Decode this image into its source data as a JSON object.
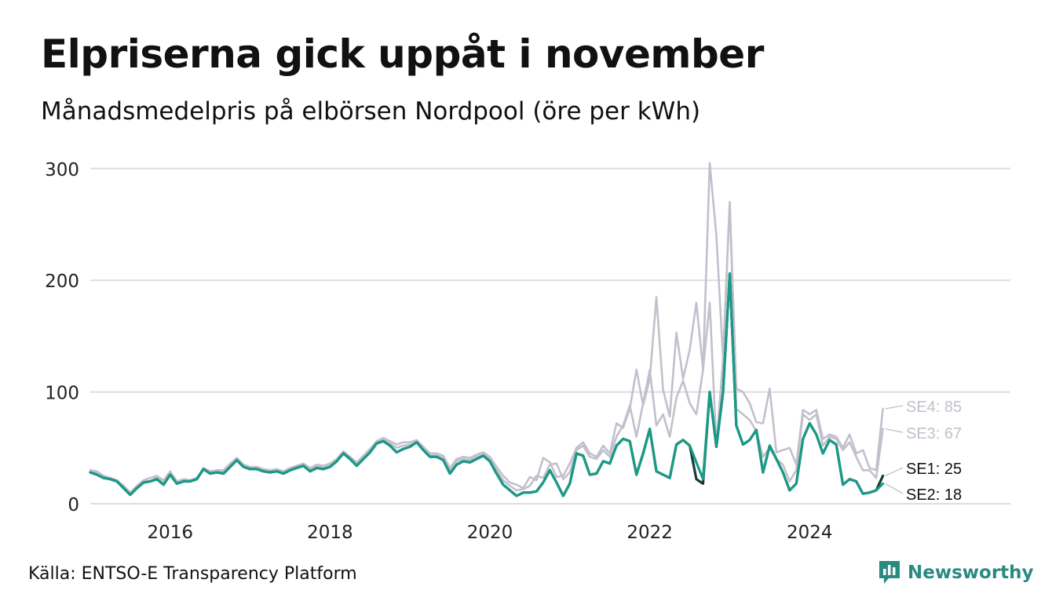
{
  "title": "Elpriserna gick uppåt i november",
  "subtitle": "Månadsmedelpris på elbörsen Nordpool (öre per kWh)",
  "source": "Källa: ENTSO-E Transparency Platform",
  "brand": "Newsworthy",
  "colors": {
    "accent": "#1a9a87",
    "dark": "#143c37",
    "muted": "#c2c0cc",
    "grid": "#dedede",
    "brand": "#2a8a80"
  },
  "chart_data": {
    "type": "line",
    "title": "Elpriserna gick uppåt i november",
    "subtitle": "Månadsmedelpris på elbörsen Nordpool (öre per kWh)",
    "xlabel": "",
    "ylabel": "",
    "x_start": "2015-01",
    "x_end": "2024-11",
    "xlim": [
      "2015-01",
      "2026-08"
    ],
    "ylim": [
      0,
      305
    ],
    "yticks": [
      0,
      100,
      200,
      300
    ],
    "xticks": [
      "2016",
      "2018",
      "2020",
      "2022",
      "2024"
    ],
    "grid": true,
    "legend": "direct labels at line ends",
    "series": [
      {
        "name": "SE1",
        "label": "SE1: 25",
        "values": [
          28,
          26,
          23,
          22,
          20,
          14,
          8,
          14,
          19,
          20,
          22,
          17,
          26,
          18,
          20,
          20,
          22,
          31,
          27,
          28,
          27,
          33,
          39,
          33,
          31,
          31,
          29,
          28,
          29,
          27,
          30,
          32,
          34,
          29,
          32,
          31,
          33,
          38,
          45,
          40,
          34,
          40,
          46,
          54,
          56,
          52,
          46,
          49,
          51,
          55,
          48,
          42,
          42,
          39,
          27,
          35,
          38,
          37,
          40,
          43,
          38,
          27,
          17,
          12,
          7,
          10,
          10,
          11,
          19,
          30,
          19,
          7,
          18,
          45,
          43,
          26,
          27,
          38,
          36,
          52,
          58,
          56,
          26,
          45,
          67,
          29,
          26,
          23,
          53,
          57,
          52,
          22,
          18,
          100,
          51,
          100,
          206,
          70,
          53,
          57,
          66,
          28,
          52,
          40,
          28,
          12,
          18,
          58,
          72,
          62,
          45,
          57,
          53,
          17,
          22,
          20,
          9,
          10,
          12,
          25
        ],
        "color": "#143c37"
      },
      {
        "name": "SE2",
        "label": "SE2: 18",
        "values": [
          28,
          26,
          23,
          22,
          20,
          14,
          8,
          14,
          19,
          20,
          22,
          17,
          26,
          18,
          20,
          20,
          22,
          31,
          27,
          28,
          27,
          33,
          39,
          33,
          31,
          31,
          29,
          28,
          29,
          27,
          30,
          32,
          34,
          29,
          32,
          31,
          33,
          38,
          45,
          40,
          34,
          40,
          46,
          54,
          56,
          52,
          46,
          49,
          51,
          55,
          48,
          42,
          42,
          39,
          27,
          35,
          38,
          37,
          40,
          43,
          38,
          27,
          17,
          12,
          7,
          10,
          10,
          11,
          19,
          30,
          19,
          7,
          18,
          45,
          43,
          26,
          27,
          38,
          36,
          52,
          58,
          56,
          26,
          45,
          67,
          29,
          26,
          23,
          53,
          57,
          52,
          37,
          22,
          100,
          51,
          100,
          206,
          70,
          53,
          57,
          66,
          28,
          52,
          40,
          28,
          12,
          18,
          58,
          72,
          62,
          45,
          57,
          53,
          17,
          22,
          20,
          9,
          10,
          12,
          18
        ],
        "color": "#1a9a87"
      },
      {
        "name": "SE3",
        "label": "SE3: 67",
        "values": [
          29,
          28,
          25,
          23,
          21,
          16,
          10,
          16,
          21,
          23,
          24,
          20,
          28,
          20,
          21,
          21,
          23,
          31,
          29,
          29,
          29,
          35,
          40,
          34,
          32,
          32,
          30,
          29,
          30,
          28,
          31,
          33,
          35,
          31,
          34,
          32,
          34,
          39,
          46,
          41,
          36,
          42,
          48,
          55,
          58,
          54,
          50,
          52,
          53,
          55,
          49,
          43,
          43,
          41,
          30,
          38,
          40,
          39,
          42,
          44,
          40,
          30,
          21,
          16,
          12,
          13,
          16,
          25,
          23,
          35,
          36,
          22,
          28,
          48,
          52,
          42,
          40,
          48,
          42,
          60,
          70,
          88,
          60,
          90,
          120,
          70,
          80,
          60,
          95,
          110,
          90,
          80,
          120,
          180,
          52,
          130,
          270,
          85,
          80,
          75,
          65,
          42,
          50,
          40,
          35,
          20,
          30,
          80,
          75,
          80,
          52,
          60,
          58,
          48,
          55,
          42,
          30,
          30,
          23,
          67
        ],
        "color": "#c2c0cc"
      },
      {
        "name": "SE4",
        "label": "SE4: 85",
        "values": [
          30,
          29,
          25,
          23,
          21,
          16,
          10,
          16,
          21,
          23,
          25,
          21,
          29,
          20,
          22,
          21,
          23,
          32,
          29,
          30,
          30,
          36,
          41,
          35,
          33,
          33,
          31,
          30,
          31,
          29,
          32,
          34,
          36,
          32,
          35,
          34,
          36,
          40,
          47,
          42,
          37,
          43,
          49,
          56,
          59,
          56,
          53,
          55,
          55,
          57,
          51,
          45,
          45,
          43,
          32,
          40,
          42,
          41,
          44,
          46,
          42,
          33,
          25,
          19,
          17,
          14,
          24,
          21,
          41,
          37,
          24,
          25,
          36,
          50,
          55,
          45,
          42,
          52,
          45,
          72,
          68,
          85,
          120,
          88,
          112,
          185,
          102,
          78,
          153,
          112,
          138,
          180,
          120,
          305,
          240,
          130,
          270,
          103,
          100,
          90,
          73,
          72,
          103,
          46,
          48,
          50,
          35,
          84,
          80,
          84,
          58,
          62,
          60,
          50,
          62,
          45,
          48,
          32,
          30,
          85
        ],
        "color": "#c2c0cc"
      }
    ]
  }
}
